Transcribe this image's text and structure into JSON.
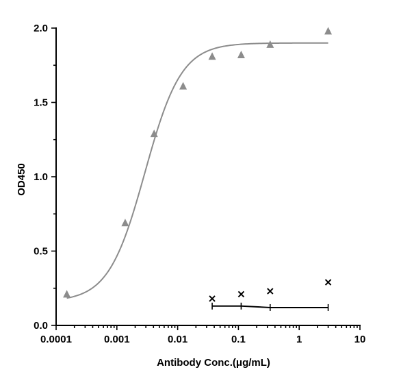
{
  "chart_data": {
    "type": "scatter",
    "title": "",
    "xlabel": "Antibody Conc.(μg/mL)",
    "ylabel": "OD450",
    "xscale": "log",
    "xlim": [
      0.0001,
      10
    ],
    "ylim": [
      0,
      2.0
    ],
    "xticks": [
      "0.0001",
      "0.001",
      "0.01",
      "0.1",
      "1",
      "10"
    ],
    "yticks": [
      "0.0",
      "0.5",
      "1.0",
      "1.5",
      "2.0"
    ],
    "grid": false,
    "legend": "none",
    "series": [
      {
        "marker": "triangle",
        "color": "#8c8c8c",
        "x": [
          0.00015,
          0.00137,
          0.0041,
          0.0123,
          0.037,
          0.111,
          0.333,
          3.0
        ],
        "y": [
          0.21,
          0.69,
          1.29,
          1.61,
          1.81,
          1.82,
          1.89,
          1.98
        ],
        "fit": {
          "bottom": 0.16,
          "top": 1.9,
          "ec50": 0.0029,
          "hill": 1.45,
          "x_range": [
            0.00015,
            3.0
          ]
        }
      },
      {
        "marker": "x",
        "color": "#000000",
        "x": [
          0.037,
          0.111,
          0.333,
          3.0
        ],
        "y": [
          0.18,
          0.21,
          0.23,
          0.29
        ],
        "fit_line": {
          "x": [
            0.037,
            0.111,
            0.333,
            3.0
          ],
          "y": [
            0.13,
            0.13,
            0.12,
            0.12
          ]
        }
      }
    ]
  }
}
